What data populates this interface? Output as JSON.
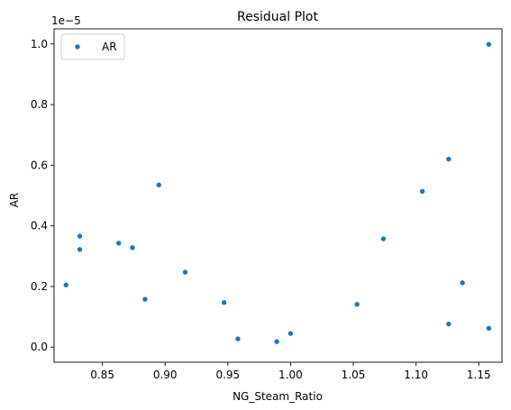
{
  "chart_data": {
    "type": "scatter",
    "title": "Residual Plot",
    "xlabel": "NG_Steam_Ratio",
    "ylabel": "AR",
    "y_offset_text": "1e−5",
    "xlim": [
      0.8115,
      1.1685
    ],
    "ylim": [
      -0.05,
      1.05
    ],
    "xticks": [
      0.85,
      0.9,
      0.95,
      1.0,
      1.05,
      1.1,
      1.15
    ],
    "xtick_labels": [
      "0.85",
      "0.90",
      "0.95",
      "1.00",
      "1.05",
      "1.10",
      "1.15"
    ],
    "yticks": [
      0.0,
      0.2,
      0.4,
      0.6,
      0.8,
      1.0
    ],
    "ytick_labels": [
      "0.0",
      "0.2",
      "0.4",
      "0.6",
      "0.8",
      "1.0"
    ],
    "grid": false,
    "legend": {
      "position": "top-left",
      "entries": [
        "AR"
      ]
    },
    "series": [
      {
        "name": "AR",
        "color": "#1f77b4",
        "points": [
          [
            0.821,
            0.205
          ],
          [
            0.832,
            0.366
          ],
          [
            0.832,
            0.322
          ],
          [
            0.863,
            0.343
          ],
          [
            0.874,
            0.328
          ],
          [
            0.884,
            0.158
          ],
          [
            0.895,
            0.535
          ],
          [
            0.916,
            0.247
          ],
          [
            0.947,
            0.147
          ],
          [
            0.958,
            0.027
          ],
          [
            0.989,
            0.018
          ],
          [
            1.0,
            0.045
          ],
          [
            1.053,
            0.141
          ],
          [
            1.074,
            0.357
          ],
          [
            1.105,
            0.514
          ],
          [
            1.126,
            0.62
          ],
          [
            1.126,
            0.076
          ],
          [
            1.137,
            0.212
          ],
          [
            1.158,
            0.999
          ],
          [
            1.158,
            0.062
          ]
        ]
      }
    ]
  }
}
